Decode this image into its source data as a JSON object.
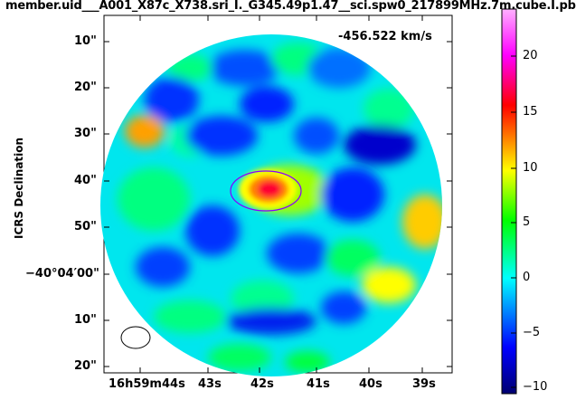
{
  "title": "member.uid___A001_X87c_X738.sri_I._G345.49p1.47__sci.spw0_217899MHz.7m.cube.I.pb",
  "velocity_label": "-456.522 km/s",
  "y_axis_label": "ICRS Declination",
  "y_ticks": [
    {
      "label": "10\""
    },
    {
      "label": "20\""
    },
    {
      "label": "30\""
    },
    {
      "label": "40\""
    },
    {
      "label": "50\""
    },
    {
      "label": "−40°04′00\""
    },
    {
      "label": "10\""
    },
    {
      "label": "20\""
    }
  ],
  "x_ticks": [
    {
      "label": "16h59m44s"
    },
    {
      "label": "43s"
    },
    {
      "label": "42s"
    },
    {
      "label": "41s"
    },
    {
      "label": "40s"
    },
    {
      "label": "39s"
    }
  ],
  "colorbar": {
    "ticks": [
      "20",
      "15",
      "10",
      "5",
      "0",
      "−5",
      "−10"
    ],
    "colors": [
      "#000070",
      "#0000ff",
      "#00ffff",
      "#00ff00",
      "#ffff00",
      "#ff0000",
      "#ff00ff",
      "#ffb0ff"
    ]
  },
  "colors": {
    "background_inside": "#00e0ff",
    "peak": "#ff0033",
    "ellipse": "#8800ff"
  }
}
